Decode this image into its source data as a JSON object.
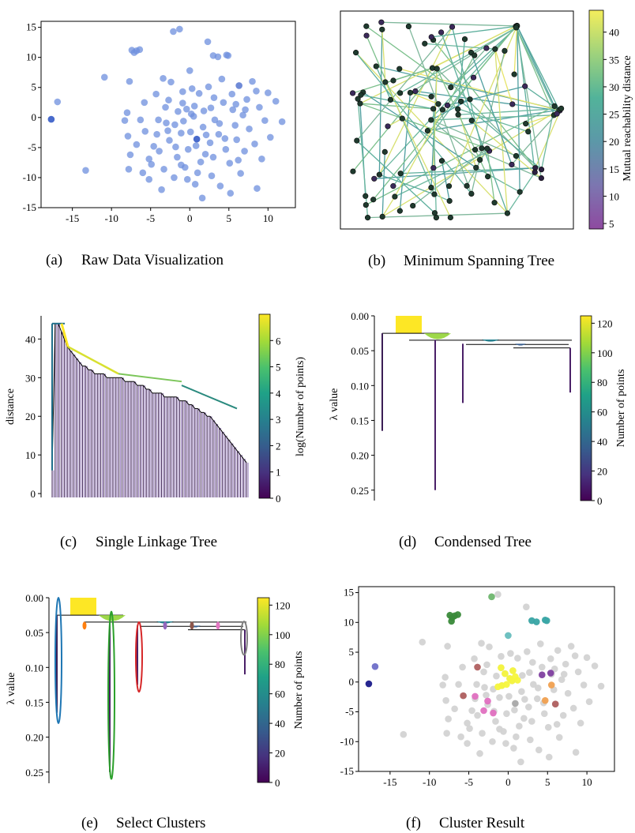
{
  "figure": {
    "panels": [
      {
        "id": "a",
        "letter": "(a)",
        "caption": "Raw Data Visualization"
      },
      {
        "id": "b",
        "letter": "(b)",
        "caption": "Minimum Spanning Tree"
      },
      {
        "id": "c",
        "letter": "(c)",
        "caption": "Single Linkage Tree"
      },
      {
        "id": "d",
        "letter": "(d)",
        "caption": "Condensed Tree"
      },
      {
        "id": "e",
        "letter": "(e)",
        "caption": "Select Clusters"
      },
      {
        "id": "f",
        "letter": "(f)",
        "caption": "Cluster Result"
      }
    ]
  },
  "chart_data": [
    {
      "panel": "a",
      "type": "scatter",
      "title": "Raw Data Visualization",
      "xlim": [
        -19,
        13.5
      ],
      "ylim": [
        -15,
        16
      ],
      "xticks": [
        -15,
        -10,
        -5,
        0,
        5,
        10
      ],
      "yticks": [
        15,
        10,
        5,
        0,
        -5,
        -10,
        -15
      ],
      "xlabel": "",
      "ylabel": "",
      "points": [
        [
          -17.7,
          -0.3
        ],
        [
          -16.9,
          2.6
        ],
        [
          -13.3,
          -8.8
        ],
        [
          -10.9,
          6.7
        ],
        [
          -7.4,
          11.2
        ],
        [
          -7.1,
          10.8
        ],
        [
          -6.8,
          11.1
        ],
        [
          -6.4,
          11.3
        ],
        [
          -7.7,
          6.0
        ],
        [
          -8.3,
          -0.5
        ],
        [
          -8.0,
          0.8
        ],
        [
          -7.9,
          -3.1
        ],
        [
          -7.6,
          -6.2
        ],
        [
          -7.8,
          -8.6
        ],
        [
          -6.8,
          -4.5
        ],
        [
          -6.3,
          -0.4
        ],
        [
          -5.8,
          2.5
        ],
        [
          -5.7,
          -2.3
        ],
        [
          -5.2,
          -10.3
        ],
        [
          -4.9,
          -7.8
        ],
        [
          -4.6,
          -4.8
        ],
        [
          -4.3,
          3.9
        ],
        [
          -4.0,
          -0.4
        ],
        [
          -3.9,
          -5.6
        ],
        [
          -3.6,
          -12.0
        ],
        [
          -3.3,
          -8.6
        ],
        [
          -3.1,
          1.7
        ],
        [
          -2.8,
          -2.2
        ],
        [
          -2.6,
          -3.8
        ],
        [
          -2.4,
          5.9
        ],
        [
          -2.1,
          14.3
        ],
        [
          -2.0,
          -10.0
        ],
        [
          -1.8,
          -4.9
        ],
        [
          -1.6,
          -6.6
        ],
        [
          -1.5,
          1.0
        ],
        [
          -1.3,
          14.7
        ],
        [
          -1.1,
          -2.6
        ],
        [
          -0.9,
          4.3
        ],
        [
          -0.8,
          -0.6
        ],
        [
          -0.6,
          -8.3
        ],
        [
          -0.4,
          1.4
        ],
        [
          -0.2,
          -5.3
        ],
        [
          0.0,
          7.8
        ],
        [
          0.1,
          -2.4
        ],
        [
          0.2,
          0.6
        ],
        [
          0.5,
          0.2
        ],
        [
          0.6,
          1.9
        ],
        [
          0.7,
          -11.1
        ],
        [
          0.9,
          -3.6
        ],
        [
          1.2,
          4.0
        ],
        [
          1.4,
          -7.4
        ],
        [
          1.6,
          -13.4
        ],
        [
          1.7,
          -1.6
        ],
        [
          2.0,
          -6.1
        ],
        [
          2.3,
          12.6
        ],
        [
          2.4,
          5.1
        ],
        [
          2.6,
          -4.2
        ],
        [
          2.8,
          -9.7
        ],
        [
          3.0,
          10.3
        ],
        [
          3.1,
          3.3
        ],
        [
          3.2,
          -0.4
        ],
        [
          3.6,
          10.1
        ],
        [
          3.7,
          -2.8
        ],
        [
          3.9,
          -11.4
        ],
        [
          4.1,
          6.4
        ],
        [
          4.3,
          2.5
        ],
        [
          4.6,
          -5.3
        ],
        [
          4.7,
          10.4
        ],
        [
          4.9,
          10.3
        ],
        [
          5.1,
          -7.6
        ],
        [
          5.2,
          -12.6
        ],
        [
          5.4,
          3.9
        ],
        [
          5.5,
          1.3
        ],
        [
          5.8,
          -1.3
        ],
        [
          6.0,
          -3.7
        ],
        [
          6.3,
          5.3
        ],
        [
          6.5,
          -9.3
        ],
        [
          6.8,
          0.4
        ],
        [
          7.0,
          -5.6
        ],
        [
          7.3,
          3.0
        ],
        [
          7.6,
          -1.9
        ],
        [
          8.0,
          6.0
        ],
        [
          8.3,
          -4.4
        ],
        [
          8.6,
          -11.8
        ],
        [
          8.9,
          1.7
        ],
        [
          9.2,
          -6.9
        ],
        [
          9.6,
          -0.5
        ],
        [
          10.0,
          4.1
        ],
        [
          10.3,
          -3.3
        ],
        [
          11.0,
          2.7
        ],
        [
          11.8,
          -0.7
        ],
        [
          -6.0,
          -9.2
        ],
        [
          -4.2,
          -2.8
        ],
        [
          -3.0,
          -0.9
        ],
        [
          -1.9,
          -1.2
        ],
        [
          -0.3,
          -10.3
        ],
        [
          1.8,
          1.1
        ],
        [
          2.7,
          1.6
        ],
        [
          3.8,
          -1.0
        ],
        [
          4.5,
          -3.5
        ],
        [
          6.2,
          -7.1
        ],
        [
          7.1,
          1.3
        ],
        [
          -2.7,
          2.9
        ],
        [
          1.0,
          -9.2
        ],
        [
          -5.2,
          -6.9
        ],
        [
          8.5,
          4.4
        ],
        [
          0.8,
          -4.7
        ],
        [
          -1.1,
          -7.9
        ],
        [
          3.0,
          -6.6
        ],
        [
          -3.4,
          6.5
        ],
        [
          5.9,
          2.2
        ],
        [
          2.1,
          -2.9
        ],
        [
          -0.9,
          2.4
        ],
        [
          0.3,
          4.8
        ]
      ]
    },
    {
      "panel": "b",
      "type": "scatter",
      "title": "Minimum Spanning Tree",
      "colorbar": {
        "label": "Mutual reachability distance",
        "ticks": [
          5,
          10,
          15,
          20,
          25,
          30,
          35,
          40
        ],
        "range": [
          4,
          44
        ]
      }
    },
    {
      "panel": "c",
      "type": "bar",
      "title": "Single Linkage Tree",
      "ylabel": "distance",
      "ylim": [
        -1,
        46
      ],
      "yticks": [
        0,
        10,
        20,
        30,
        40
      ],
      "colorbar": {
        "label": "log(Number of points)",
        "ticks": [
          0,
          1,
          2,
          3,
          4,
          5,
          6
        ],
        "range": [
          0,
          7
        ]
      },
      "merge_heights": [
        6,
        44,
        44,
        42,
        40,
        38,
        37,
        36,
        35,
        34,
        33,
        33,
        32,
        32,
        31,
        31,
        31,
        31,
        30,
        30,
        30,
        30,
        30,
        30,
        29,
        29,
        29,
        29,
        28,
        28,
        28,
        27,
        27,
        26,
        26,
        26,
        26,
        25,
        25,
        25,
        25,
        25,
        24,
        24,
        24,
        23,
        23,
        22,
        22,
        21,
        21,
        20,
        20,
        19,
        18,
        17,
        16,
        15,
        14,
        13,
        12,
        11,
        10,
        9,
        8
      ]
    },
    {
      "panel": "d",
      "type": "bar",
      "title": "Condensed Tree",
      "ylabel": "λ value",
      "ylim": [
        0,
        0.265
      ],
      "yticks": [
        "0.00",
        "0.05",
        "0.10",
        "0.15",
        "0.20",
        "0.25"
      ],
      "colorbar": {
        "label": "Number of points",
        "ticks": [
          0,
          20,
          40,
          60,
          80,
          100,
          120
        ],
        "range": [
          0,
          125
        ]
      }
    },
    {
      "panel": "e",
      "type": "bar",
      "title": "Select Clusters",
      "ylabel": "λ value",
      "ylim": [
        0,
        0.265
      ],
      "yticks": [
        "0.00",
        "0.05",
        "0.10",
        "0.15",
        "0.20",
        "0.25"
      ],
      "colorbar": {
        "label": "Number of points",
        "ticks": [
          0,
          20,
          40,
          60,
          80,
          100,
          120
        ],
        "range": [
          0,
          125
        ]
      }
    },
    {
      "panel": "f",
      "type": "scatter",
      "title": "Cluster Result",
      "xlim": [
        -19,
        13.5
      ],
      "ylim": [
        -15,
        16
      ],
      "xticks": [
        -15,
        -10,
        -5,
        0,
        5,
        10
      ],
      "yticks": [
        15,
        10,
        5,
        0,
        -5,
        -10,
        -15
      ],
      "clusters": [
        {
          "color": "#1a1a8a",
          "points": [
            [
              -17.7,
              -0.3
            ]
          ]
        },
        {
          "color": "#6f6fc8",
          "points": [
            [
              -16.9,
              2.6
            ]
          ]
        },
        {
          "color": "#3a8a3a",
          "points": [
            [
              -7.4,
              11.2
            ],
            [
              -7.1,
              10.8
            ],
            [
              -6.8,
              11.1
            ],
            [
              -6.4,
              11.3
            ],
            [
              -7.2,
              10.2
            ]
          ]
        },
        {
          "color": "#70b870",
          "points": [
            [
              -2.1,
              14.3
            ]
          ]
        },
        {
          "color": "#3aa6a6",
          "points": [
            [
              3.0,
              10.3
            ],
            [
              3.6,
              10.1
            ],
            [
              4.7,
              10.4
            ],
            [
              4.9,
              10.3
            ]
          ]
        },
        {
          "color": "#68c0c0",
          "points": [
            [
              0.0,
              7.8
            ]
          ]
        },
        {
          "color": "#f5f53c",
          "points": [
            [
              -1.3,
              -0.8
            ],
            [
              -0.4,
              1.4
            ],
            [
              0.2,
              0.6
            ],
            [
              0.5,
              0.2
            ],
            [
              0.6,
              1.9
            ],
            [
              -0.9,
              2.4
            ],
            [
              -0.8,
              -0.6
            ],
            [
              1.2,
              0.3
            ],
            [
              -0.2,
              -0.4
            ],
            [
              0.9,
              0.9
            ]
          ]
        },
        {
          "color": "#b06060",
          "points": [
            [
              -3.9,
              2.5
            ],
            [
              -5.7,
              -2.3
            ],
            [
              6.0,
              -3.7
            ]
          ]
        },
        {
          "color": "#e070c0",
          "points": [
            [
              -2.6,
              -3.2
            ],
            [
              -3.1,
              -4.8
            ],
            [
              -1.9,
              -5.2
            ],
            [
              -4.2,
              -2.4
            ]
          ]
        },
        {
          "color": "#8040a0",
          "points": [
            [
              4.3,
              1.2
            ],
            [
              5.4,
              1.5
            ]
          ]
        },
        {
          "color": "#f0a050",
          "points": [
            [
              5.5,
              -0.5
            ],
            [
              4.7,
              -3.1
            ]
          ]
        }
      ]
    }
  ]
}
